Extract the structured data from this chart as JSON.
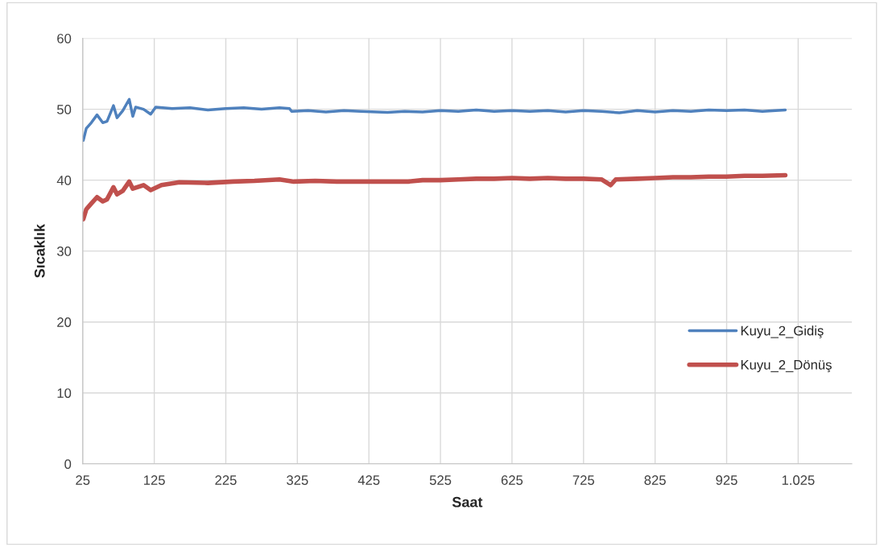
{
  "chart_data": {
    "type": "line",
    "xlabel": "Saat",
    "ylabel": "Sıcaklık",
    "xlim": [
      25,
      1100
    ],
    "xticks": [
      25,
      125,
      225,
      325,
      425,
      525,
      625,
      725,
      825,
      925,
      {
        "value": 1025,
        "label": "1.025"
      }
    ],
    "ylim": [
      0,
      60
    ],
    "yticks": [
      0,
      10,
      20,
      30,
      40,
      50,
      60
    ],
    "grid": true,
    "legend": "right",
    "marker": "none",
    "line_style": "solid",
    "series": [
      {
        "name": "Kuyu_2_Gidiş",
        "color": "#4f81bd",
        "x": [
          25.8,
          30,
          37,
          45,
          53,
          59,
          68,
          73,
          81,
          90,
          95,
          99,
          110,
          120,
          127,
          150,
          175,
          200,
          225,
          250,
          275,
          300,
          314,
          317,
          340,
          365,
          390,
          414,
          451,
          475,
          500,
          525,
          550,
          575,
          600,
          625,
          650,
          675,
          700,
          725,
          750,
          775,
          800,
          825,
          850,
          875,
          900,
          925,
          950,
          975,
          1007
        ],
        "values": [
          45.6,
          47.3,
          48.1,
          49.2,
          48.1,
          48.3,
          50.5,
          48.8,
          49.8,
          51.4,
          49.0,
          50.3,
          50.0,
          49.3,
          50.3,
          50.1,
          50.2,
          49.9,
          50.1,
          50.2,
          50.0,
          50.2,
          50.1,
          49.7,
          49.8,
          49.6,
          49.8,
          49.7,
          49.55,
          49.7,
          49.6,
          49.8,
          49.7,
          49.9,
          49.7,
          49.8,
          49.7,
          49.8,
          49.6,
          49.8,
          49.7,
          49.5,
          49.8,
          49.6,
          49.8,
          49.7,
          49.9,
          49.8,
          49.9,
          49.7,
          49.9
        ]
      },
      {
        "name": "Kuyu_2_Dönüş",
        "color": "#c0504d",
        "x": [
          25.8,
          30,
          37,
          45,
          53,
          59,
          68,
          73,
          81,
          90,
          95,
          110,
          120,
          135,
          160,
          200,
          235,
          265,
          300,
          320,
          350,
          380,
          414,
          451,
          480,
          500,
          525,
          550,
          575,
          600,
          625,
          650,
          675,
          700,
          725,
          750,
          763,
          770,
          800,
          825,
          850,
          875,
          900,
          925,
          950,
          975,
          1007
        ],
        "values": [
          34.5,
          35.9,
          36.7,
          37.6,
          37.0,
          37.3,
          39.0,
          38.0,
          38.5,
          39.8,
          38.8,
          39.3,
          38.6,
          39.3,
          39.7,
          39.6,
          39.8,
          39.9,
          40.1,
          39.8,
          39.9,
          39.8,
          39.8,
          39.8,
          39.8,
          40.0,
          40.0,
          40.1,
          40.2,
          40.2,
          40.3,
          40.2,
          40.3,
          40.2,
          40.2,
          40.1,
          39.3,
          40.1,
          40.2,
          40.3,
          40.4,
          40.4,
          40.5,
          40.5,
          40.6,
          40.6,
          40.7
        ]
      }
    ]
  }
}
